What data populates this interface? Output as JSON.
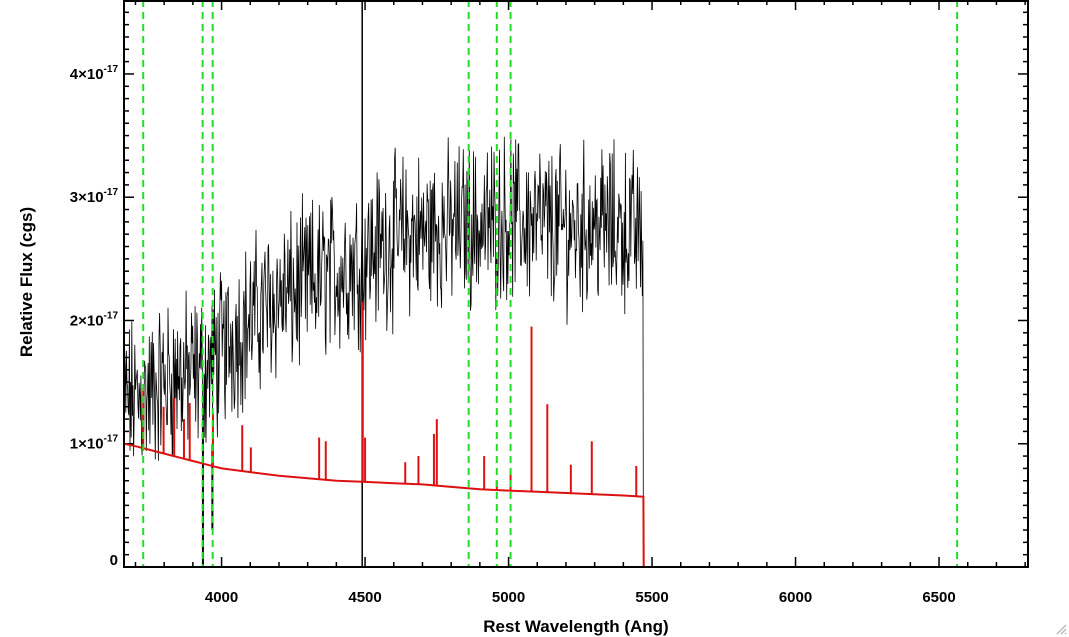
{
  "chart_data": {
    "type": "line",
    "title": "",
    "xlabel": "Rest Wavelength (Ang)",
    "ylabel": "Relative Flux (cgs)",
    "xlim": [
      3660,
      6810
    ],
    "ylim": [
      0,
      4.6e-17
    ],
    "x_ticks": [
      {
        "value": 4000,
        "label": "4000"
      },
      {
        "value": 4500,
        "label": "4500"
      },
      {
        "value": 5000,
        "label": "5000"
      },
      {
        "value": 5500,
        "label": "5500"
      },
      {
        "value": 6000,
        "label": "6000"
      },
      {
        "value": 6500,
        "label": "6500"
      }
    ],
    "y_ticks": [
      {
        "value": 0,
        "mantissa": "0",
        "exponent": ""
      },
      {
        "value": 1e-17,
        "mantissa": "1×10",
        "exponent": "-17"
      },
      {
        "value": 2e-17,
        "mantissa": "2×10",
        "exponent": "-17"
      },
      {
        "value": 3e-17,
        "mantissa": "3×10",
        "exponent": "-17"
      },
      {
        "value": 4e-17,
        "mantissa": "4×10",
        "exponent": "-17"
      }
    ],
    "grid": false,
    "colors": {
      "observed": "#000000",
      "model": "#dd1111",
      "markers": "#22dd22"
    },
    "vertical_lines": [
      3727,
      3934,
      3969,
      4861,
      4959,
      5007,
      6563
    ],
    "series": [
      {
        "style": "noisy-line",
        "color": "#000000",
        "x": [
          3660,
          3700,
          3750,
          3800,
          3850,
          3900,
          3950,
          4000,
          4050,
          4100,
          4150,
          4200,
          4250,
          4300,
          4350,
          4400,
          4450,
          4490,
          4500,
          4550,
          4600,
          4650,
          4700,
          4750,
          4800,
          4850,
          4900,
          4950,
          5000,
          5050,
          5100,
          5150,
          5200,
          5250,
          5300,
          5350,
          5400,
          5450,
          5470
        ],
        "y": [
          1.35e-17,
          1.35e-17,
          1.4e-17,
          1.5e-17,
          1.55e-17,
          1.55e-17,
          1.6e-17,
          1.75e-17,
          1.9e-17,
          2e-17,
          2.1e-17,
          2.2e-17,
          2.2e-17,
          2.3e-17,
          2.35e-17,
          2.4e-17,
          2.45e-17,
          2.5e-17,
          2.55e-17,
          2.6e-17,
          2.65e-17,
          2.7e-17,
          2.7e-17,
          2.75e-17,
          2.75e-17,
          2.8e-17,
          2.75e-17,
          2.8e-17,
          2.85e-17,
          2.8e-17,
          2.8e-17,
          2.75e-17,
          2.75e-17,
          2.75e-17,
          2.8e-17,
          2.75e-17,
          2.75e-17,
          2.7e-17,
          2.7e-17
        ]
      },
      {
        "style": "line",
        "color": "#dd1111",
        "x": [
          3660,
          3700,
          3750,
          3800,
          3850,
          3900,
          3950,
          4000,
          4100,
          4200,
          4300,
          4400,
          4500,
          4600,
          4700,
          4800,
          4900,
          5000,
          5100,
          5200,
          5300,
          5400,
          5470,
          5471,
          6810
        ],
        "y": [
          1e-17,
          9.8e-18,
          9.5e-18,
          9.2e-18,
          8.9e-18,
          8.6e-18,
          8.3e-18,
          8e-18,
          7.7e-18,
          7.4e-18,
          7.2e-18,
          7e-18,
          6.9e-18,
          6.8e-18,
          6.7e-18,
          6.5e-18,
          6.3e-18,
          6.2e-18,
          6.1e-18,
          6e-18,
          5.9e-18,
          5.8e-18,
          5.7e-18,
          0,
          0
        ],
        "emission_lines": [
          [
            3727,
            1.45e-17
          ],
          [
            3798,
            1.3e-17
          ],
          [
            3835,
            1.37e-17
          ],
          [
            3869,
            1.2e-17
          ],
          [
            3889,
            1.33e-17
          ],
          [
            3970,
            1.25e-17
          ],
          [
            4072,
            1.15e-17
          ],
          [
            4102,
            9.7e-18
          ],
          [
            4340,
            1.05e-17
          ],
          [
            4363,
            1.02e-17
          ],
          [
            4492,
            2.15e-17
          ],
          [
            4500,
            1.05e-17
          ],
          [
            4640,
            8.5e-18
          ],
          [
            4686,
            9e-18
          ],
          [
            4740,
            1.08e-17
          ],
          [
            4750,
            1.2e-17
          ],
          [
            4915,
            9e-18
          ],
          [
            4959,
            7e-18
          ],
          [
            5007,
            7.8e-18
          ],
          [
            5080,
            1.95e-17
          ],
          [
            5135,
            1.32e-17
          ],
          [
            5217,
            8.3e-18
          ],
          [
            5290,
            1.02e-17
          ],
          [
            5445,
            8.2e-18
          ]
        ]
      }
    ]
  }
}
